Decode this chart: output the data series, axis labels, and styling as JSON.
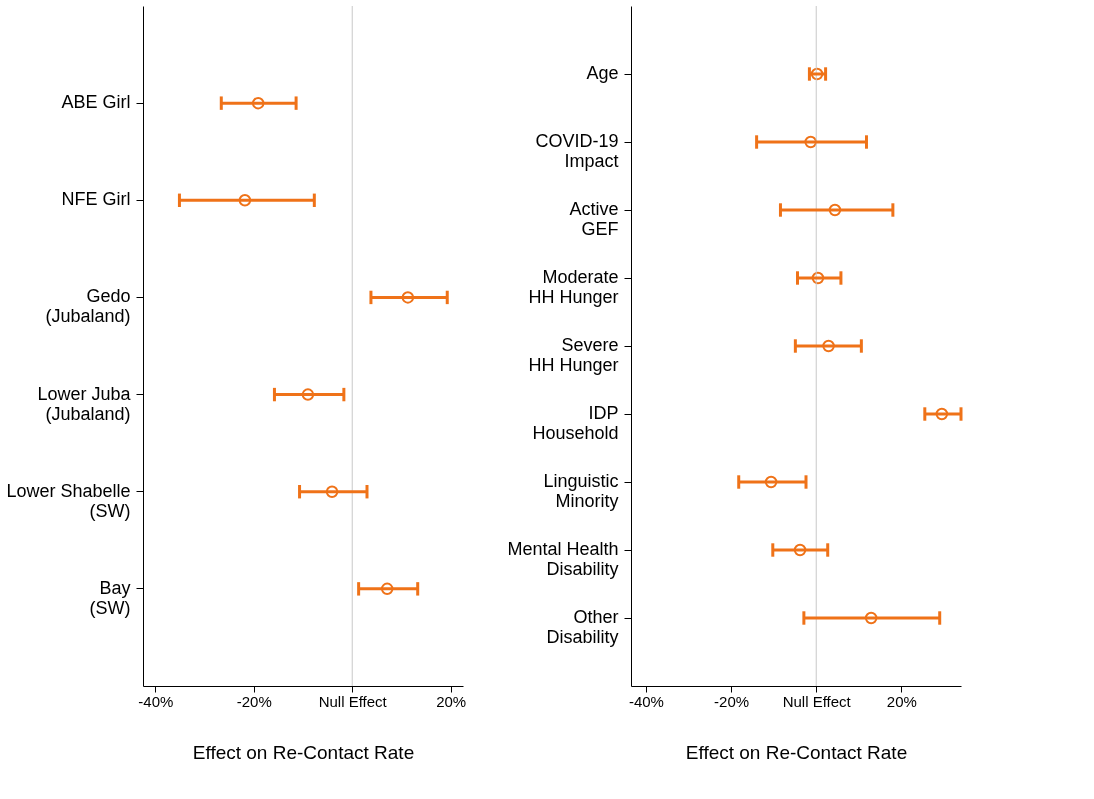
{
  "chart_data": [
    {
      "type": "scatter",
      "orientation": "horizontal",
      "xlabel": "Effect on Re-Contact Rate",
      "marker": "circle",
      "grid": false,
      "categories": [
        "ABE Girl",
        "NFE Girl",
        "Gedo\n(Jubaland)",
        "Lower Juba\n(Jubaland)",
        "Lower Shabelle\n(SW)",
        "Bay\n(SW)"
      ],
      "series": [
        {
          "color": "#ef7218",
          "values": [
            -19.1,
            -21.8,
            11.3,
            -9.0,
            -4.1,
            7.1
          ],
          "errors": [
            [
              -26.6,
              -11.4
            ],
            [
              -35.1,
              -7.7
            ],
            [
              3.8,
              19.3
            ],
            [
              -15.8,
              -1.7
            ],
            [
              -10.7,
              3.0
            ],
            [
              1.3,
              13.3
            ]
          ]
        }
      ],
      "xlim": [
        -42.5,
        22.5
      ],
      "xticks": [
        {
          "value": -40,
          "label": "-40%"
        },
        {
          "value": -20,
          "label": "-20%"
        },
        {
          "value": 0,
          "label": "Null Effect"
        },
        {
          "value": 20,
          "label": "20%"
        }
      ],
      "ref_lines": [
        {
          "axis": "x",
          "value": 0,
          "color": "#c8c8c8"
        }
      ]
    },
    {
      "type": "scatter",
      "orientation": "horizontal",
      "xlabel": "Effect on Re-Contact Rate",
      "marker": "circle",
      "grid": false,
      "categories": [
        "Age",
        "COVID-19\nImpact",
        "Active\nGEF",
        "Moderate\nHH Hunger",
        "Severe\nHH Hunger",
        "IDP\nHousehold",
        "Linguistic\nMinority",
        "Mental Health\nDisability",
        "Other\nDisability"
      ],
      "series": [
        {
          "color": "#ef7218",
          "values": [
            0.2,
            -1.3,
            4.4,
            0.4,
            2.9,
            29.5,
            -10.6,
            -3.8,
            12.9
          ],
          "errors": [
            [
              -1.6,
              2.2
            ],
            [
              -14.0,
              11.8
            ],
            [
              -8.4,
              18.0
            ],
            [
              -4.4,
              5.8
            ],
            [
              -4.9,
              10.6
            ],
            [
              25.5,
              34.0
            ],
            [
              -18.2,
              -2.4
            ],
            [
              -10.2,
              2.7
            ],
            [
              -2.9,
              29.0
            ]
          ]
        }
      ],
      "xlim": [
        -43.5,
        34
      ],
      "xticks": [
        {
          "value": -40,
          "label": "-40%"
        },
        {
          "value": -20,
          "label": "-20%"
        },
        {
          "value": 0,
          "label": "Null Effect"
        },
        {
          "value": 20,
          "label": "20%"
        }
      ],
      "ref_lines": [
        {
          "axis": "x",
          "value": 0,
          "color": "#c8c8c8"
        }
      ]
    }
  ]
}
